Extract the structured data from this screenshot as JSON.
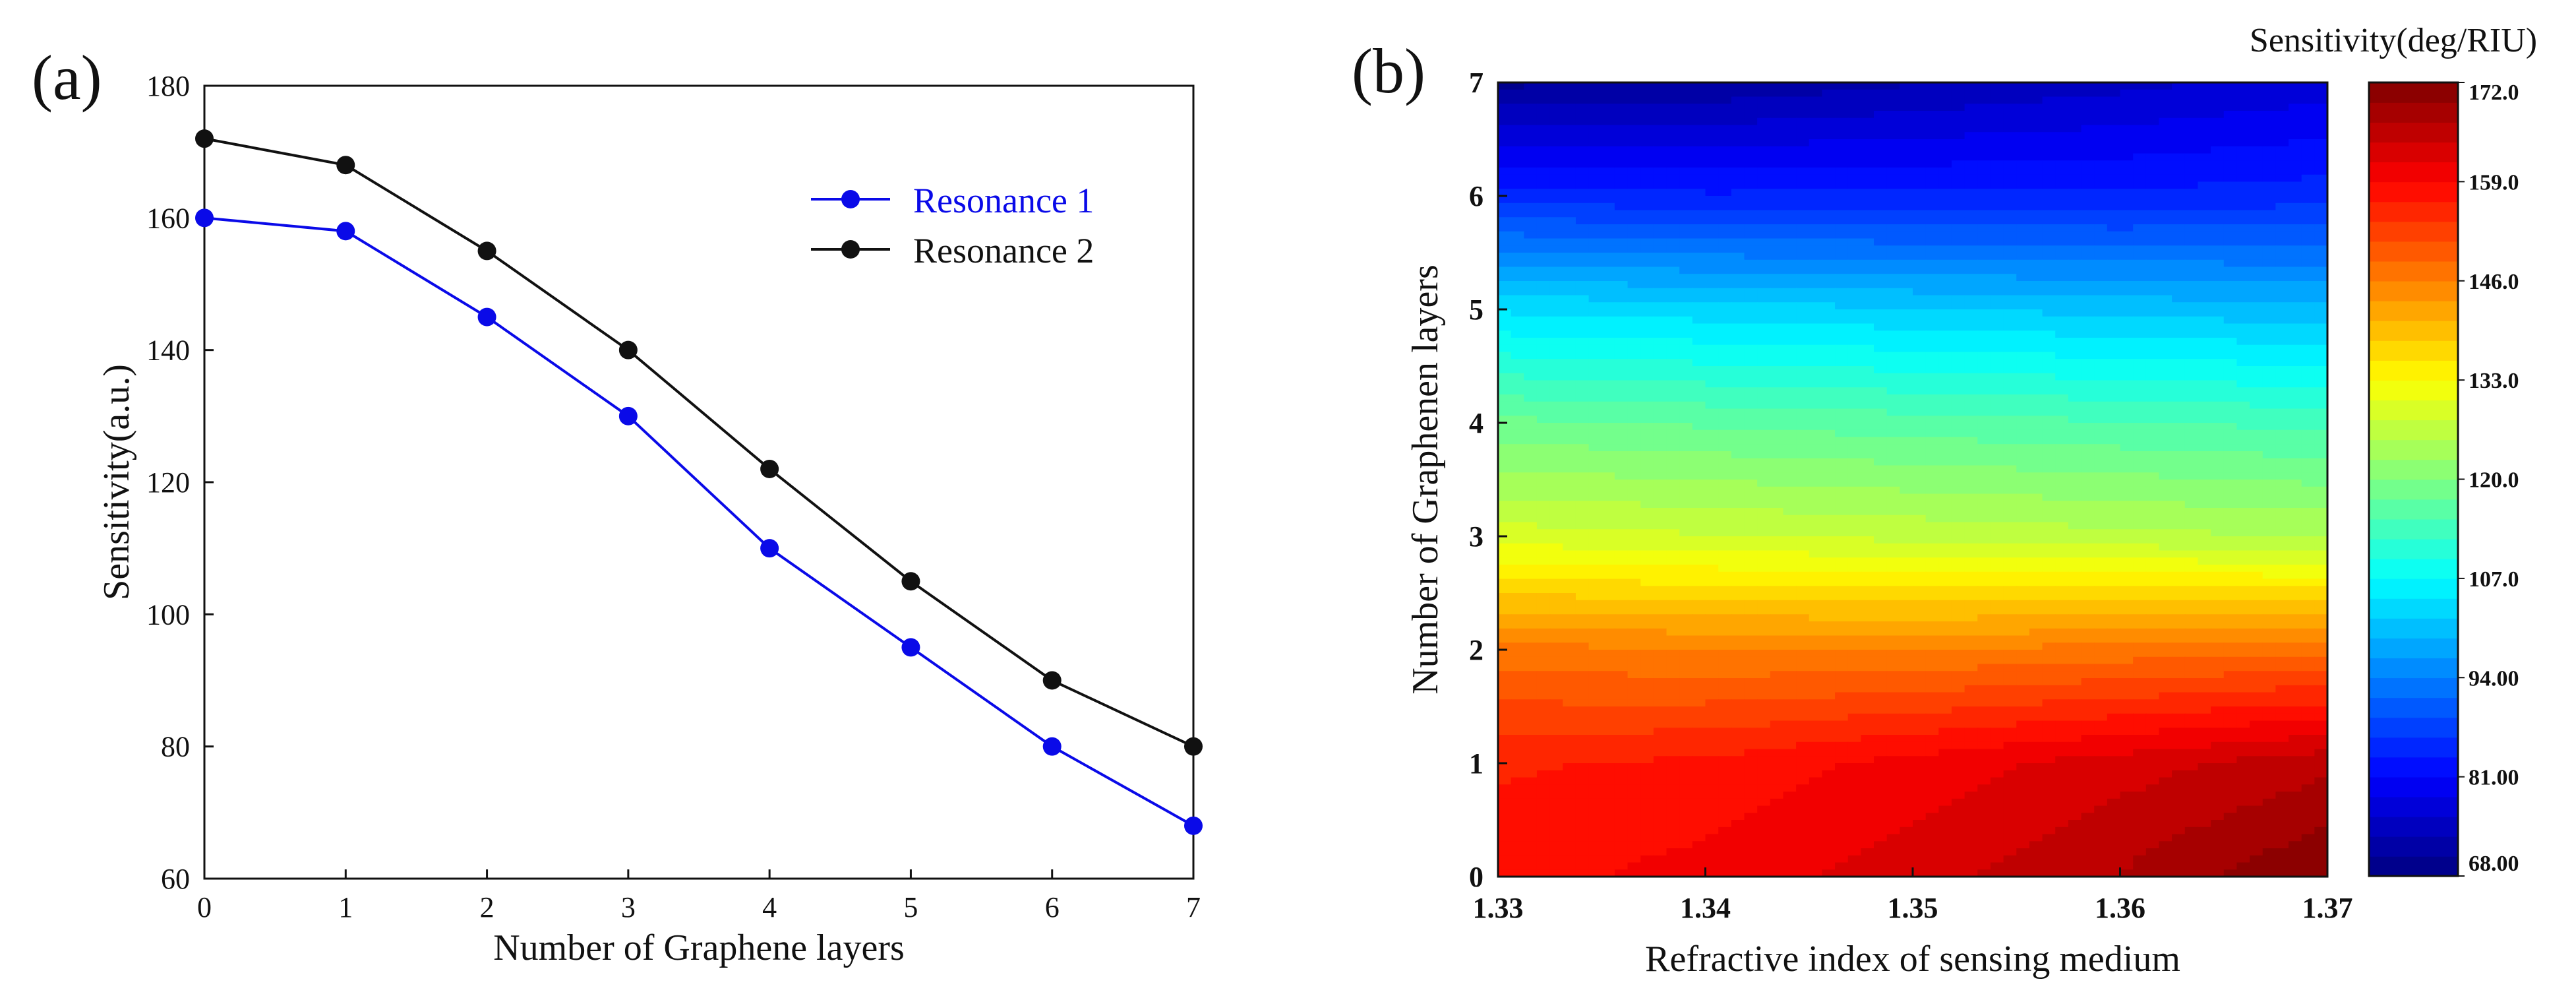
{
  "panel_labels": {
    "a": "(a)",
    "b": "(b)"
  },
  "colors": {
    "resonance1": "#0a0ae8",
    "resonance2": "#111111"
  },
  "chart_data": [
    {
      "type": "line",
      "id": "a",
      "title": "",
      "xlabel": "Number of Graphene layers",
      "ylabel": "Sensitivity(a.u.)",
      "x": [
        0,
        1,
        2,
        3,
        4,
        5,
        6,
        7
      ],
      "xlim": [
        0,
        7
      ],
      "ylim": [
        60,
        180
      ],
      "xticks": [
        "0",
        "1",
        "2",
        "3",
        "4",
        "5",
        "6",
        "7"
      ],
      "yticks": [
        "60",
        "80",
        "100",
        "120",
        "140",
        "160",
        "180"
      ],
      "grid": false,
      "legend_position": "top-right",
      "series": [
        {
          "name": "Resonance 1",
          "values": [
            160,
            158,
            145,
            130,
            110,
            95,
            80,
            68
          ]
        },
        {
          "name": "Resonance 2",
          "values": [
            172,
            168,
            155,
            140,
            122,
            105,
            90,
            80
          ]
        }
      ]
    },
    {
      "type": "heatmap",
      "id": "b",
      "title": "",
      "xlabel": "Refractive index of sensing medium",
      "ylabel": "Number of Graphenen layers",
      "xlim": [
        1.33,
        1.37
      ],
      "ylim": [
        0,
        7
      ],
      "xticks": [
        "1.33",
        "1.34",
        "1.35",
        "1.36",
        "1.37"
      ],
      "yticks": [
        "0",
        "1",
        "2",
        "3",
        "4",
        "5",
        "6",
        "7"
      ],
      "x": [
        1.33,
        1.34,
        1.35,
        1.36,
        1.37
      ],
      "y": [
        0,
        1,
        2,
        3,
        4,
        5,
        6,
        7
      ],
      "z": [
        [
          158,
          160,
          163,
          167,
          172
        ],
        [
          156,
          157,
          160,
          163,
          166
        ],
        [
          147,
          146,
          146,
          147,
          148
        ],
        [
          129,
          128,
          127,
          126,
          125
        ],
        [
          118,
          117,
          116,
          115,
          114
        ],
        [
          104,
          103,
          102,
          101,
          100
        ],
        [
          85,
          84,
          84,
          84,
          85
        ],
        [
          70,
          71,
          73,
          75,
          77
        ]
      ],
      "colorbar": {
        "title": "Sensitivity(deg/RIU)",
        "min": 68,
        "max": 172,
        "ticks": [
          "68.00",
          "81.00",
          "94.00",
          "107.0",
          "120.0",
          "133.0",
          "146.0",
          "159.0",
          "172.0"
        ]
      }
    }
  ]
}
